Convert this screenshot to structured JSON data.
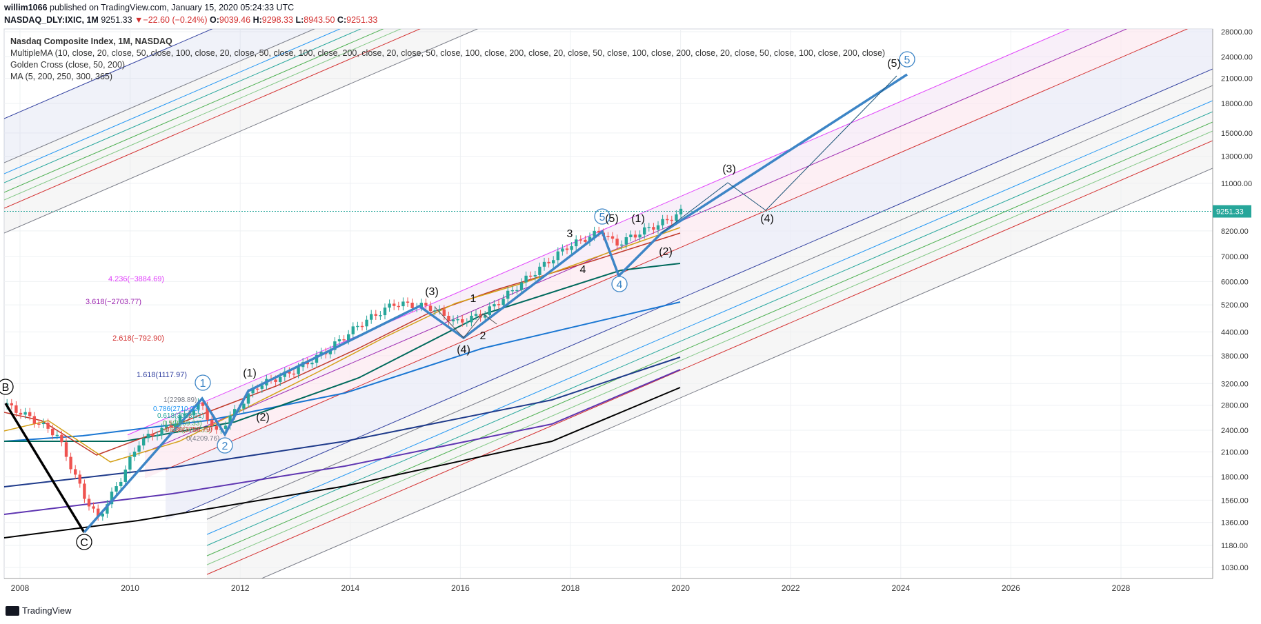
{
  "header": {
    "author": "willim1066",
    "published_text": "published on TradingView.com, January 15, 2020 05:24:33 UTC",
    "symbol": "NASDAQ_DLY:IXIC",
    "interval": "1M",
    "last": "9251.33",
    "change": "−22.60 (−0.24%)",
    "change_arrow": "▼",
    "o_label": "O:",
    "o_value": "9039.46",
    "h_label": "H:",
    "h_value": "9298.33",
    "l_label": "L:",
    "l_value": "8943.50",
    "c_label": "C:",
    "c_value": "9251.33"
  },
  "legend": {
    "title": "Nasdaq Composite Index, 1M, NASDAQ",
    "studies": [
      "MultipleMA (10, close, 20, close, 50, close, 100, close, 20, close, 50, close, 100, close, 200, close, 20, close, 50, close, 100, close, 200, close, 20, close, 50, close, 100, close, 200, close, 20, close, 50, close, 100, close, 200, close)",
      "Golden Cross (close, 50, 200)",
      "MA (5, 200, 250, 300, 365)"
    ]
  },
  "footer": {
    "brand": "TradingView"
  },
  "colors": {
    "up": "#26a69a",
    "down": "#ef5350",
    "price_line": "#26a69a",
    "wave_blue": "#3d85c6",
    "axis_text": "#333333",
    "grid": "#eef0f3"
  },
  "chart_data": {
    "type": "candlestick",
    "scale": "log",
    "x_ticks": [
      "2008",
      "2010",
      "2012",
      "2014",
      "2016",
      "2018",
      "2020",
      "2022",
      "2024",
      "2026",
      "2028"
    ],
    "y_ticks": [
      "28000.00",
      "24000.00",
      "21000.00",
      "18000.00",
      "15000.00",
      "13000.00",
      "11000.00",
      "8200.00",
      "7000.00",
      "6000.00",
      "5200.00",
      "4400.00",
      "3800.00",
      "3200.00",
      "2800.00",
      "2400.00",
      "2100.00",
      "1800.00",
      "1560.00",
      "1360.00",
      "1180.00",
      "1030.00"
    ],
    "last_price_label": "9251.33",
    "fib_labels": [
      {
        "text": "4.236(−3884.69)",
        "color": "#e040fb"
      },
      {
        "text": "3.618(−2703.77)",
        "color": "#9c27b0"
      },
      {
        "text": "2.618(−792.90)",
        "color": "#d32f2f"
      },
      {
        "text": "1.618(1117.97)",
        "color": "#303f9f"
      }
    ],
    "retracement_labels": [
      {
        "text": "1(2298.89)",
        "color": "#787b86"
      },
      {
        "text": "0.786(2710.02)",
        "color": "#2196f3"
      },
      {
        "text": "0.618(3033.51)",
        "color": "#26a69a"
      },
      {
        "text": "0.5(3259.33)",
        "color": "#4caf50"
      },
      {
        "text": "0.382(3483.35)",
        "color": "#81c784"
      },
      {
        "text": "0.236(3758.79)",
        "color": "#d32f2f"
      },
      {
        "text": "0(4209.76)",
        "color": "#787b86"
      }
    ],
    "wave_labels": [
      {
        "text": "B"
      },
      {
        "text": "C"
      },
      {
        "text": "1"
      },
      {
        "text": "2"
      },
      {
        "text": "(1)"
      },
      {
        "text": "(2)"
      },
      {
        "text": "(3)"
      },
      {
        "text": "(4)"
      },
      {
        "text": "1"
      },
      {
        "text": "2"
      },
      {
        "text": "3"
      },
      {
        "text": "4"
      },
      {
        "text": "5"
      },
      {
        "text": "(5)"
      },
      {
        "text": "4"
      },
      {
        "text": "(1)"
      },
      {
        "text": "(2)"
      },
      {
        "text": "(3)"
      },
      {
        "text": "(4)"
      },
      {
        "text": "(5)"
      },
      {
        "text": "5"
      }
    ]
  }
}
